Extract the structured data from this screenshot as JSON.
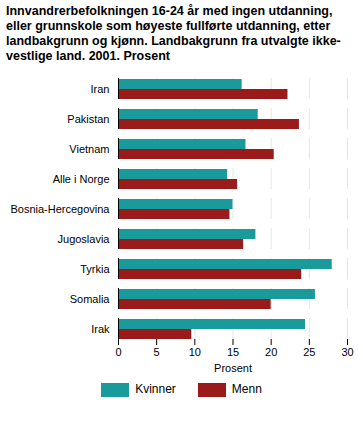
{
  "chart_data": {
    "type": "bar",
    "orientation": "horizontal",
    "title": "Innvandrerbefolkningen 16-24 år med ingen utdanning, eller grunnskole som høyeste fullførte utdanning, etter landbakgrunn og kjønn. Landbakgrunn fra utvalgte ikke-vestlige land. 2001. Prosent",
    "categories": [
      "Iran",
      "Pakistan",
      "Vietnam",
      "Alle i Norge",
      "Bosnia-Hercegovina",
      "Jugoslavia",
      "Tyrkia",
      "Somalia",
      "Irak"
    ],
    "series": [
      {
        "name": "Kvinner",
        "color": "#1a9b9b",
        "values": [
          16.2,
          18.3,
          16.7,
          14.3,
          15.0,
          18.0,
          28.0,
          25.8,
          24.5
        ]
      },
      {
        "name": "Menn",
        "color": "#9b1b1b",
        "values": [
          22.2,
          23.7,
          20.4,
          15.6,
          14.6,
          16.4,
          24.0,
          20.0,
          9.6
        ]
      }
    ],
    "x_label": "Prosent",
    "xlim": [
      0,
      30
    ],
    "xticks": [
      0,
      5,
      10,
      15,
      20,
      25,
      30
    ],
    "grid": true,
    "legend": "bottom"
  }
}
